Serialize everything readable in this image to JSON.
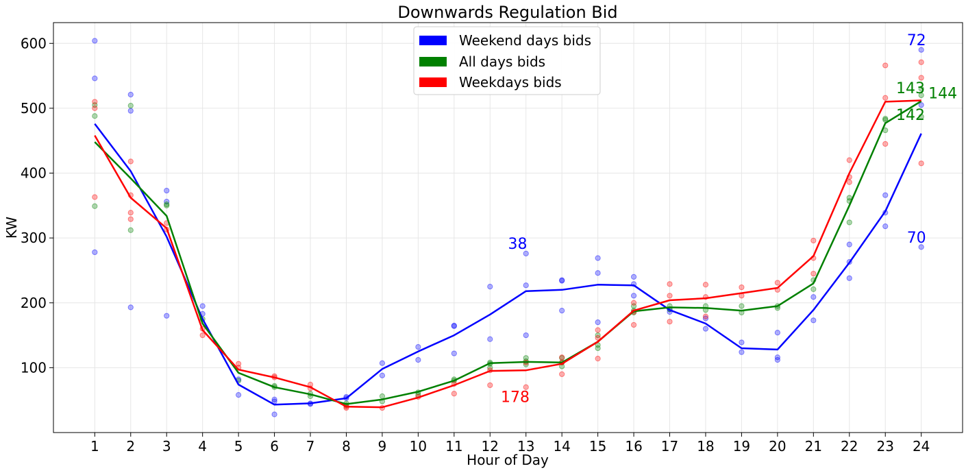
{
  "chart_data": {
    "type": "line",
    "title": "Downwards Regulation Bid",
    "xlabel": "Hour of Day",
    "ylabel": "KW",
    "xlim": [
      -0.15,
      25.15
    ],
    "ylim": [
      0,
      632
    ],
    "x": [
      1,
      2,
      3,
      4,
      5,
      6,
      7,
      8,
      9,
      10,
      11,
      12,
      13,
      14,
      15,
      16,
      17,
      18,
      19,
      20,
      21,
      22,
      23,
      24
    ],
    "xticks": [
      "1",
      "2",
      "3",
      "4",
      "5",
      "6",
      "7",
      "8",
      "9",
      "10",
      "11",
      "12",
      "13",
      "14",
      "15",
      "16",
      "17",
      "18",
      "19",
      "20",
      "21",
      "22",
      "23",
      "24"
    ],
    "yticks": [
      100,
      200,
      300,
      400,
      500,
      600
    ],
    "ytick_labels": [
      "100",
      "200",
      "300",
      "400",
      "500",
      "600"
    ],
    "grid": true,
    "legend_position": "top-center",
    "series": [
      {
        "name": "Weekend days bids",
        "color": "#0000ff",
        "values": [
          476,
          403,
          302,
          175,
          74,
          43,
          45,
          53,
          98,
          125,
          150,
          182,
          218,
          220,
          228,
          227,
          189,
          168,
          130,
          128,
          189,
          262,
          341,
          461
        ],
        "points": [
          [
            1,
            604
          ],
          [
            1,
            546
          ],
          [
            1,
            278
          ],
          [
            2,
            521
          ],
          [
            2,
            496
          ],
          [
            2,
            193
          ],
          [
            3,
            373
          ],
          [
            3,
            356
          ],
          [
            3,
            180
          ],
          [
            4,
            195
          ],
          [
            4,
            183
          ],
          [
            5,
            82
          ],
          [
            5,
            58
          ],
          [
            6,
            51
          ],
          [
            6,
            48
          ],
          [
            6,
            28
          ],
          [
            7,
            44
          ],
          [
            7,
            45
          ],
          [
            8,
            53
          ],
          [
            8,
            55
          ],
          [
            9,
            107
          ],
          [
            9,
            88
          ],
          [
            10,
            132
          ],
          [
            10,
            112
          ],
          [
            11,
            165
          ],
          [
            11,
            164
          ],
          [
            11,
            122
          ],
          [
            12,
            225
          ],
          [
            12,
            144
          ],
          [
            13,
            276
          ],
          [
            13,
            227
          ],
          [
            13,
            150
          ],
          [
            14,
            235
          ],
          [
            14,
            234
          ],
          [
            14,
            188
          ],
          [
            15,
            269
          ],
          [
            15,
            246
          ],
          [
            15,
            170
          ],
          [
            16,
            240
          ],
          [
            16,
            229
          ],
          [
            16,
            211
          ],
          [
            17,
            190
          ],
          [
            17,
            186
          ],
          [
            18,
            176
          ],
          [
            18,
            160
          ],
          [
            19,
            139
          ],
          [
            19,
            124
          ],
          [
            20,
            154
          ],
          [
            20,
            116
          ],
          [
            20,
            112
          ],
          [
            21,
            209
          ],
          [
            21,
            173
          ],
          [
            22,
            290
          ],
          [
            22,
            263
          ],
          [
            22,
            238
          ],
          [
            23,
            366
          ],
          [
            23,
            339
          ],
          [
            23,
            318
          ],
          [
            24,
            590
          ],
          [
            24,
            505
          ],
          [
            24,
            286
          ]
        ]
      },
      {
        "name": "All days bids",
        "color": "#008000",
        "values": [
          448,
          392,
          334,
          168,
          92,
          70,
          59,
          44,
          51,
          63,
          80,
          107,
          109,
          108,
          140,
          187,
          193,
          192,
          188,
          195,
          230,
          350,
          477,
          511
        ],
        "points": [
          [
            1,
            505
          ],
          [
            1,
            488
          ],
          [
            1,
            349
          ],
          [
            2,
            504
          ],
          [
            2,
            312
          ],
          [
            3,
            352
          ],
          [
            3,
            350
          ],
          [
            4,
            175
          ],
          [
            5,
            80
          ],
          [
            6,
            72
          ],
          [
            6,
            70
          ],
          [
            7,
            60
          ],
          [
            7,
            56
          ],
          [
            8,
            45
          ],
          [
            8,
            42
          ],
          [
            9,
            56
          ],
          [
            9,
            48
          ],
          [
            10,
            62
          ],
          [
            10,
            58
          ],
          [
            11,
            82
          ],
          [
            11,
            80
          ],
          [
            12,
            108
          ],
          [
            12,
            106
          ],
          [
            12,
            100
          ],
          [
            13,
            115
          ],
          [
            13,
            110
          ],
          [
            13,
            105
          ],
          [
            14,
            115
          ],
          [
            14,
            108
          ],
          [
            14,
            102
          ],
          [
            15,
            150
          ],
          [
            15,
            135
          ],
          [
            15,
            130
          ],
          [
            16,
            195
          ],
          [
            16,
            188
          ],
          [
            16,
            185
          ],
          [
            17,
            195
          ],
          [
            17,
            190
          ],
          [
            18,
            195
          ],
          [
            18,
            189
          ],
          [
            19,
            195
          ],
          [
            19,
            185
          ],
          [
            20,
            195
          ],
          [
            20,
            192
          ],
          [
            21,
            235
          ],
          [
            21,
            221
          ],
          [
            22,
            362
          ],
          [
            22,
            357
          ],
          [
            22,
            324
          ],
          [
            23,
            484
          ],
          [
            23,
            482
          ],
          [
            23,
            466
          ],
          [
            24,
            530
          ],
          [
            24,
            520
          ],
          [
            24,
            487
          ]
        ]
      },
      {
        "name": "Weekdays bids",
        "color": "#ff0000",
        "values": [
          458,
          362,
          315,
          158,
          97,
          85,
          70,
          40,
          39,
          54,
          73,
          95,
          96,
          106,
          140,
          188,
          204,
          207,
          215,
          223,
          272,
          400,
          510,
          512
        ],
        "points": [
          [
            1,
            510
          ],
          [
            1,
            500
          ],
          [
            1,
            363
          ],
          [
            2,
            418
          ],
          [
            2,
            366
          ],
          [
            2,
            339
          ],
          [
            2,
            329
          ],
          [
            3,
            323
          ],
          [
            3,
            313
          ],
          [
            4,
            160
          ],
          [
            4,
            150
          ],
          [
            5,
            106
          ],
          [
            5,
            100
          ],
          [
            6,
            87
          ],
          [
            6,
            85
          ],
          [
            7,
            74
          ],
          [
            7,
            68
          ],
          [
            8,
            40
          ],
          [
            8,
            38
          ],
          [
            9,
            38
          ],
          [
            10,
            55
          ],
          [
            11,
            60
          ],
          [
            11,
            75
          ],
          [
            12,
            73
          ],
          [
            12,
            96
          ],
          [
            13,
            70
          ],
          [
            13,
            108
          ],
          [
            14,
            116
          ],
          [
            14,
            108
          ],
          [
            14,
            90
          ],
          [
            15,
            158
          ],
          [
            15,
            146
          ],
          [
            15,
            114
          ],
          [
            16,
            200
          ],
          [
            16,
            186
          ],
          [
            16,
            166
          ],
          [
            17,
            229
          ],
          [
            17,
            211
          ],
          [
            17,
            171
          ],
          [
            18,
            228
          ],
          [
            18,
            209
          ],
          [
            18,
            179
          ],
          [
            19,
            224
          ],
          [
            19,
            211
          ],
          [
            20,
            231
          ],
          [
            20,
            220
          ],
          [
            21,
            296
          ],
          [
            21,
            245
          ],
          [
            21,
            269
          ],
          [
            22,
            420
          ],
          [
            22,
            394
          ],
          [
            22,
            386
          ],
          [
            23,
            566
          ],
          [
            23,
            516
          ],
          [
            23,
            445
          ],
          [
            24,
            571
          ],
          [
            24,
            547
          ],
          [
            24,
            415
          ]
        ]
      }
    ],
    "annotations": [
      {
        "text": "38",
        "x": 12.5,
        "y": 283,
        "color": "#0000ff"
      },
      {
        "text": "178",
        "x": 12.3,
        "y": 47,
        "color": "#ff0000"
      },
      {
        "text": "72",
        "x": 23.6,
        "y": 597,
        "color": "#0000ff"
      },
      {
        "text": "70",
        "x": 23.6,
        "y": 293,
        "color": "#0000ff"
      },
      {
        "text": "143",
        "x": 23.3,
        "y": 523,
        "color": "#008000"
      },
      {
        "text": "142",
        "x": 23.3,
        "y": 482,
        "color": "#008000"
      },
      {
        "text": "144",
        "x": 24.2,
        "y": 515,
        "color": "#008000"
      }
    ]
  }
}
